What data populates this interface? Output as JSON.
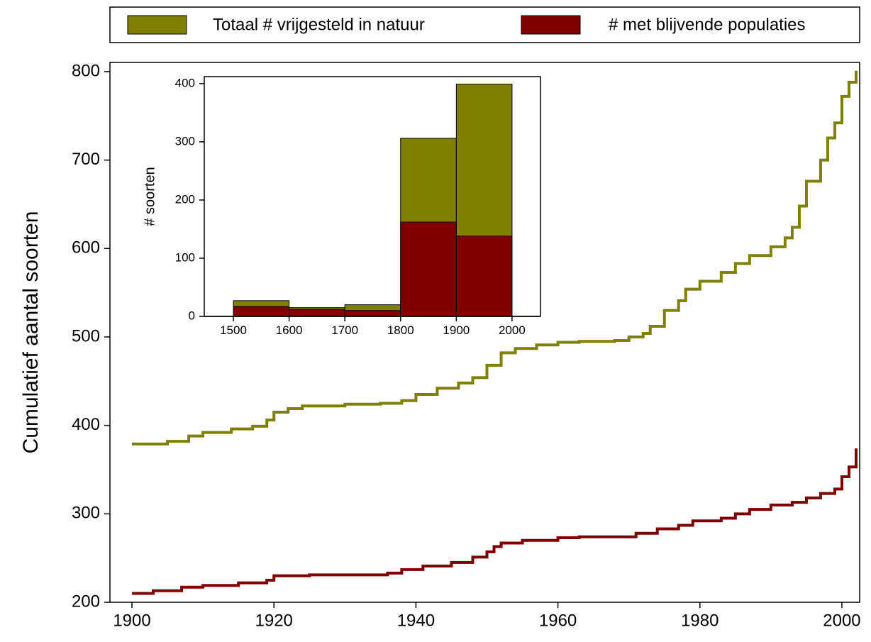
{
  "chart_data": [
    {
      "type": "step",
      "ylabel": "Cumulatief aantal soorten",
      "xlim": [
        1896.9,
        2002.5
      ],
      "ylim": [
        200,
        810.4
      ],
      "xticks": [
        1900,
        1920,
        1940,
        1960,
        1980,
        2000
      ],
      "yticks": [
        200,
        300,
        400,
        500,
        600,
        700,
        800
      ],
      "legend": "top",
      "series": [
        {
          "name": "Totaal # vrijgesteld in natuur",
          "color": "#808000",
          "x": [
            1900,
            1905,
            1908,
            1910,
            1914,
            1917,
            1919,
            1920,
            1922,
            1924,
            1930,
            1935,
            1938,
            1940,
            1943,
            1946,
            1948,
            1950,
            1952,
            1954,
            1957,
            1960,
            1963,
            1968,
            1970,
            1972,
            1973,
            1975,
            1977,
            1978,
            1980,
            1983,
            1985,
            1987,
            1990,
            1992,
            1993,
            1994,
            1995,
            1997,
            1998,
            1999,
            2000,
            2001,
            2002
          ],
          "values": [
            379,
            382,
            388,
            392,
            396,
            399,
            406,
            415,
            419,
            422,
            424,
            425,
            428,
            435,
            442,
            448,
            454,
            468,
            482,
            487,
            491,
            494,
            495,
            496,
            500,
            504,
            512,
            530,
            541,
            554,
            563,
            573,
            583,
            592,
            602,
            612,
            624,
            648,
            676,
            700,
            725,
            742,
            772,
            788,
            801
          ]
        },
        {
          "name": "# met blijvende populaties",
          "color": "#800000",
          "x": [
            1900,
            1903,
            1907,
            1910,
            1915,
            1919,
            1920,
            1925,
            1936,
            1938,
            1941,
            1945,
            1948,
            1950,
            1951,
            1952,
            1955,
            1960,
            1963,
            1971,
            1974,
            1977,
            1979,
            1983,
            1985,
            1987,
            1990,
            1993,
            1995,
            1997,
            1999,
            2000,
            2001,
            2002
          ],
          "values": [
            210,
            213,
            217,
            219,
            222,
            225,
            230,
            231,
            233,
            237,
            241,
            245,
            251,
            257,
            263,
            267,
            270,
            273,
            274,
            278,
            283,
            287,
            292,
            295,
            300,
            305,
            310,
            313,
            318,
            323,
            328,
            342,
            353,
            374
          ]
        }
      ]
    },
    {
      "type": "histogram",
      "ylabel": "# soorten",
      "bins": [
        1500,
        1600,
        1700,
        1800,
        1900,
        2000
      ],
      "xlim": [
        1447.8,
        2051
      ],
      "ylim": [
        0,
        412
      ],
      "xticks": [
        1500,
        1600,
        1700,
        1800,
        1900,
        2000
      ],
      "yticks": [
        0,
        100,
        200,
        300,
        400
      ],
      "series": [
        {
          "color": "#808000",
          "values": [
            27,
            15,
            20,
            306,
            399
          ]
        },
        {
          "color": "#800000",
          "values": [
            17,
            12,
            10,
            162,
            138
          ]
        }
      ]
    }
  ]
}
